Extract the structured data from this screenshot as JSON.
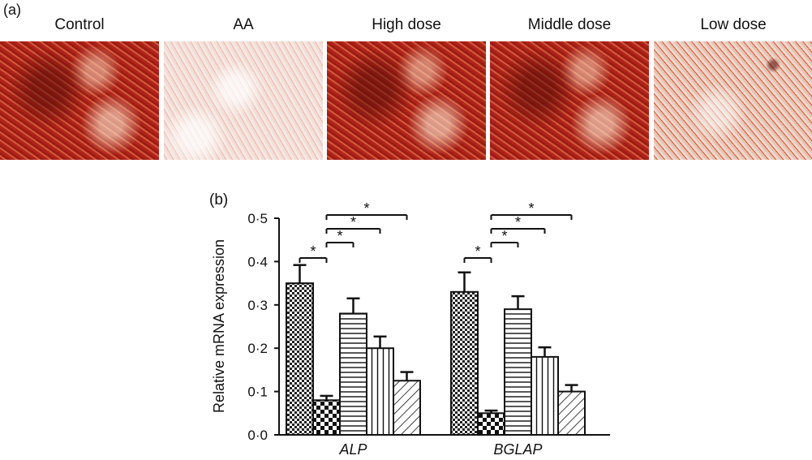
{
  "panel_a": {
    "label": "(a)",
    "images": [
      {
        "title": "Control",
        "stain": "dense"
      },
      {
        "title": "AA",
        "stain": "sparse"
      },
      {
        "title": "High dose",
        "stain": "dense"
      },
      {
        "title": "Middle dose",
        "stain": "dense"
      },
      {
        "title": "Low dose",
        "stain": "light"
      }
    ]
  },
  "panel_b": {
    "label": "(b)"
  },
  "chart_data": {
    "type": "bar",
    "ylabel": "Relative mRNA expression",
    "ylim": [
      0,
      0.5
    ],
    "yticks": [
      "0·0",
      "0·1",
      "0·2",
      "0·3",
      "0·4",
      "0·5"
    ],
    "categories": [
      "ALP",
      "BGLAP"
    ],
    "series": [
      {
        "pattern": "checker-fine",
        "values": [
          0.35,
          0.33
        ],
        "errors": [
          0.042,
          0.045
        ]
      },
      {
        "pattern": "checker-coarse",
        "values": [
          0.08,
          0.05
        ],
        "errors": [
          0.01,
          0.006
        ]
      },
      {
        "pattern": "horizontal-lines",
        "values": [
          0.28,
          0.29
        ],
        "errors": [
          0.035,
          0.03
        ]
      },
      {
        "pattern": "vertical-lines",
        "values": [
          0.2,
          0.18
        ],
        "errors": [
          0.027,
          0.022
        ]
      },
      {
        "pattern": "diagonal-lines",
        "values": [
          0.125,
          0.1
        ],
        "errors": [
          0.02,
          0.015
        ]
      }
    ],
    "significance": [
      {
        "category": 0,
        "from": 0,
        "to": 1,
        "label": "*"
      },
      {
        "category": 0,
        "from": 1,
        "to": 2,
        "label": "*"
      },
      {
        "category": 0,
        "from": 1,
        "to": 3,
        "label": "*"
      },
      {
        "category": 0,
        "from": 1,
        "to": 4,
        "label": "*"
      },
      {
        "category": 1,
        "from": 0,
        "to": 1,
        "label": "*"
      },
      {
        "category": 1,
        "from": 1,
        "to": 2,
        "label": "*"
      },
      {
        "category": 1,
        "from": 1,
        "to": 3,
        "label": "*"
      },
      {
        "category": 1,
        "from": 1,
        "to": 4,
        "label": "*"
      }
    ],
    "colors": {
      "stain": "#b5281a",
      "stain_dark": "#5a0e08",
      "bar_fill": "#ffffff",
      "ink": "#111111"
    }
  }
}
